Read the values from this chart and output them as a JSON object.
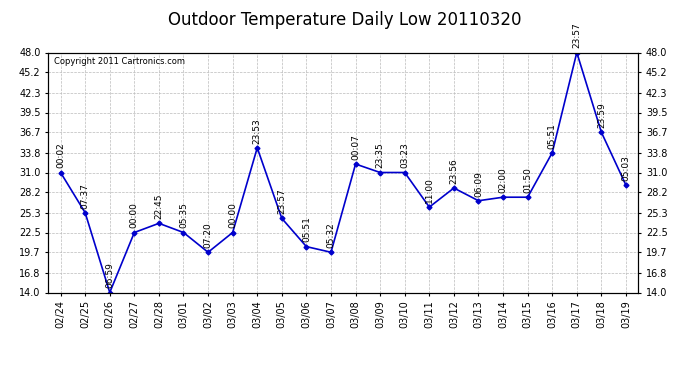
{
  "title": "Outdoor Temperature Daily Low 20110320",
  "copyright": "Copyright 2011 Cartronics.com",
  "x_labels": [
    "02/24",
    "02/25",
    "02/26",
    "02/27",
    "02/28",
    "03/01",
    "03/02",
    "03/03",
    "03/04",
    "03/05",
    "03/06",
    "03/07",
    "03/08",
    "03/09",
    "03/10",
    "03/11",
    "03/12",
    "03/13",
    "03/14",
    "03/15",
    "03/16",
    "03/17",
    "03/18",
    "03/19"
  ],
  "y_values": [
    31.0,
    25.3,
    14.0,
    22.5,
    23.8,
    22.5,
    19.7,
    22.5,
    34.5,
    24.5,
    20.5,
    19.7,
    32.2,
    31.0,
    31.0,
    26.1,
    28.8,
    27.0,
    27.5,
    27.5,
    33.8,
    48.0,
    36.7,
    29.2
  ],
  "time_labels": [
    "00:02",
    "07:37",
    "06:59",
    "00:00",
    "22:45",
    "05:35",
    "07:20",
    "00:00",
    "23:53",
    "23:57",
    "05:51",
    "05:32",
    "00:07",
    "23:35",
    "03:23",
    "11:00",
    "23:56",
    "06:09",
    "02:00",
    "01:50",
    "05:51",
    "23:57",
    "23:59",
    "05:03"
  ],
  "ylim": [
    14.0,
    48.0
  ],
  "yticks": [
    14.0,
    16.8,
    19.7,
    22.5,
    25.3,
    28.2,
    31.0,
    33.8,
    36.7,
    39.5,
    42.3,
    45.2,
    48.0
  ],
  "line_color": "#0000CC",
  "marker_color": "#0000CC",
  "bg_color": "#ffffff",
  "grid_color": "#bbbbbb",
  "title_fontsize": 12,
  "label_fontsize": 7,
  "annotation_fontsize": 6.5,
  "copyright_fontsize": 6
}
